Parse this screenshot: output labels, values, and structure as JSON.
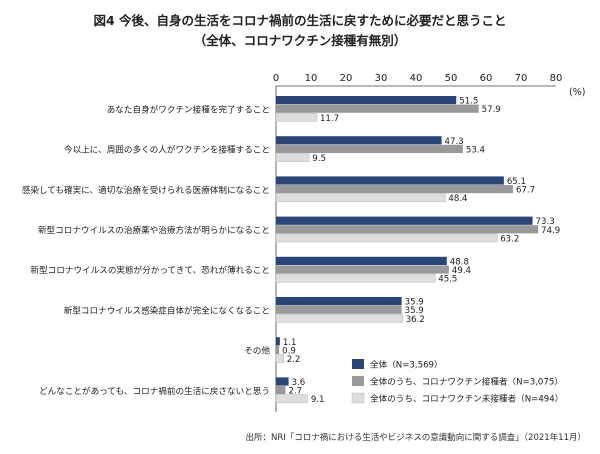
{
  "title_line1": "図4 今後、自身の生活をコロナ禍前の生活に戻すために必要だと思うこと",
  "title_line2": "（全体、コロナワクチン接種有無別）",
  "source": "出所：NRI「コロナ禍における生活やビジネスの意識動向に関する調査」（2021年11月）",
  "chart_data": {
    "type": "bar",
    "orientation": "horizontal",
    "unit": "(%)",
    "xlim": [
      0,
      80
    ],
    "xticks": [
      "0",
      "10",
      "20",
      "30",
      "40",
      "50",
      "60",
      "70",
      "80"
    ],
    "legend_position": "bottom-right",
    "categories": [
      "あなた自身がワクチン接種を完了すること",
      "今以上に、周囲の多くの人がワクチンを接種すること",
      "感染しても確実に、適切な治療を受けられる医療体制になること",
      "新型コロナウイルスの治療薬や治療方法が明らかになること",
      "新型コロナウイルスの実態が分かってきて、恐れが薄れること",
      "新型コロナウイルス感染症自体が完全になくなること",
      "その他",
      "どんなことがあっても、コロナ禍前の生活に戻さないと思う"
    ],
    "series": [
      {
        "name": "全体（N=3,569）",
        "color": "#2b4577",
        "values": [
          51.5,
          47.3,
          65.1,
          73.3,
          48.8,
          35.9,
          1.1,
          3.6
        ],
        "labels": [
          "51.5",
          "47.3",
          "65.1",
          "73.3",
          "48.8",
          "35.9",
          "1.1",
          "3.6"
        ]
      },
      {
        "name": "全体のうち、コロナワクチン接種者（N=3,075）",
        "color": "#999999",
        "values": [
          57.9,
          53.4,
          67.7,
          74.9,
          49.4,
          35.9,
          0.9,
          2.7
        ],
        "labels": [
          "57.9",
          "53.4",
          "67.7",
          "74.9",
          "49.4",
          "35.9",
          "0.9",
          "2.7"
        ]
      },
      {
        "name": "全体のうち、コロナワクチン未接種者（N=494）",
        "color": "#dddddd",
        "values": [
          11.7,
          9.5,
          48.4,
          63.2,
          45.5,
          36.2,
          2.2,
          9.1
        ],
        "labels": [
          "11.7",
          "9.5",
          "48.4",
          "63.2",
          "45.5",
          "36.2",
          "2.2",
          "9.1"
        ]
      }
    ]
  }
}
